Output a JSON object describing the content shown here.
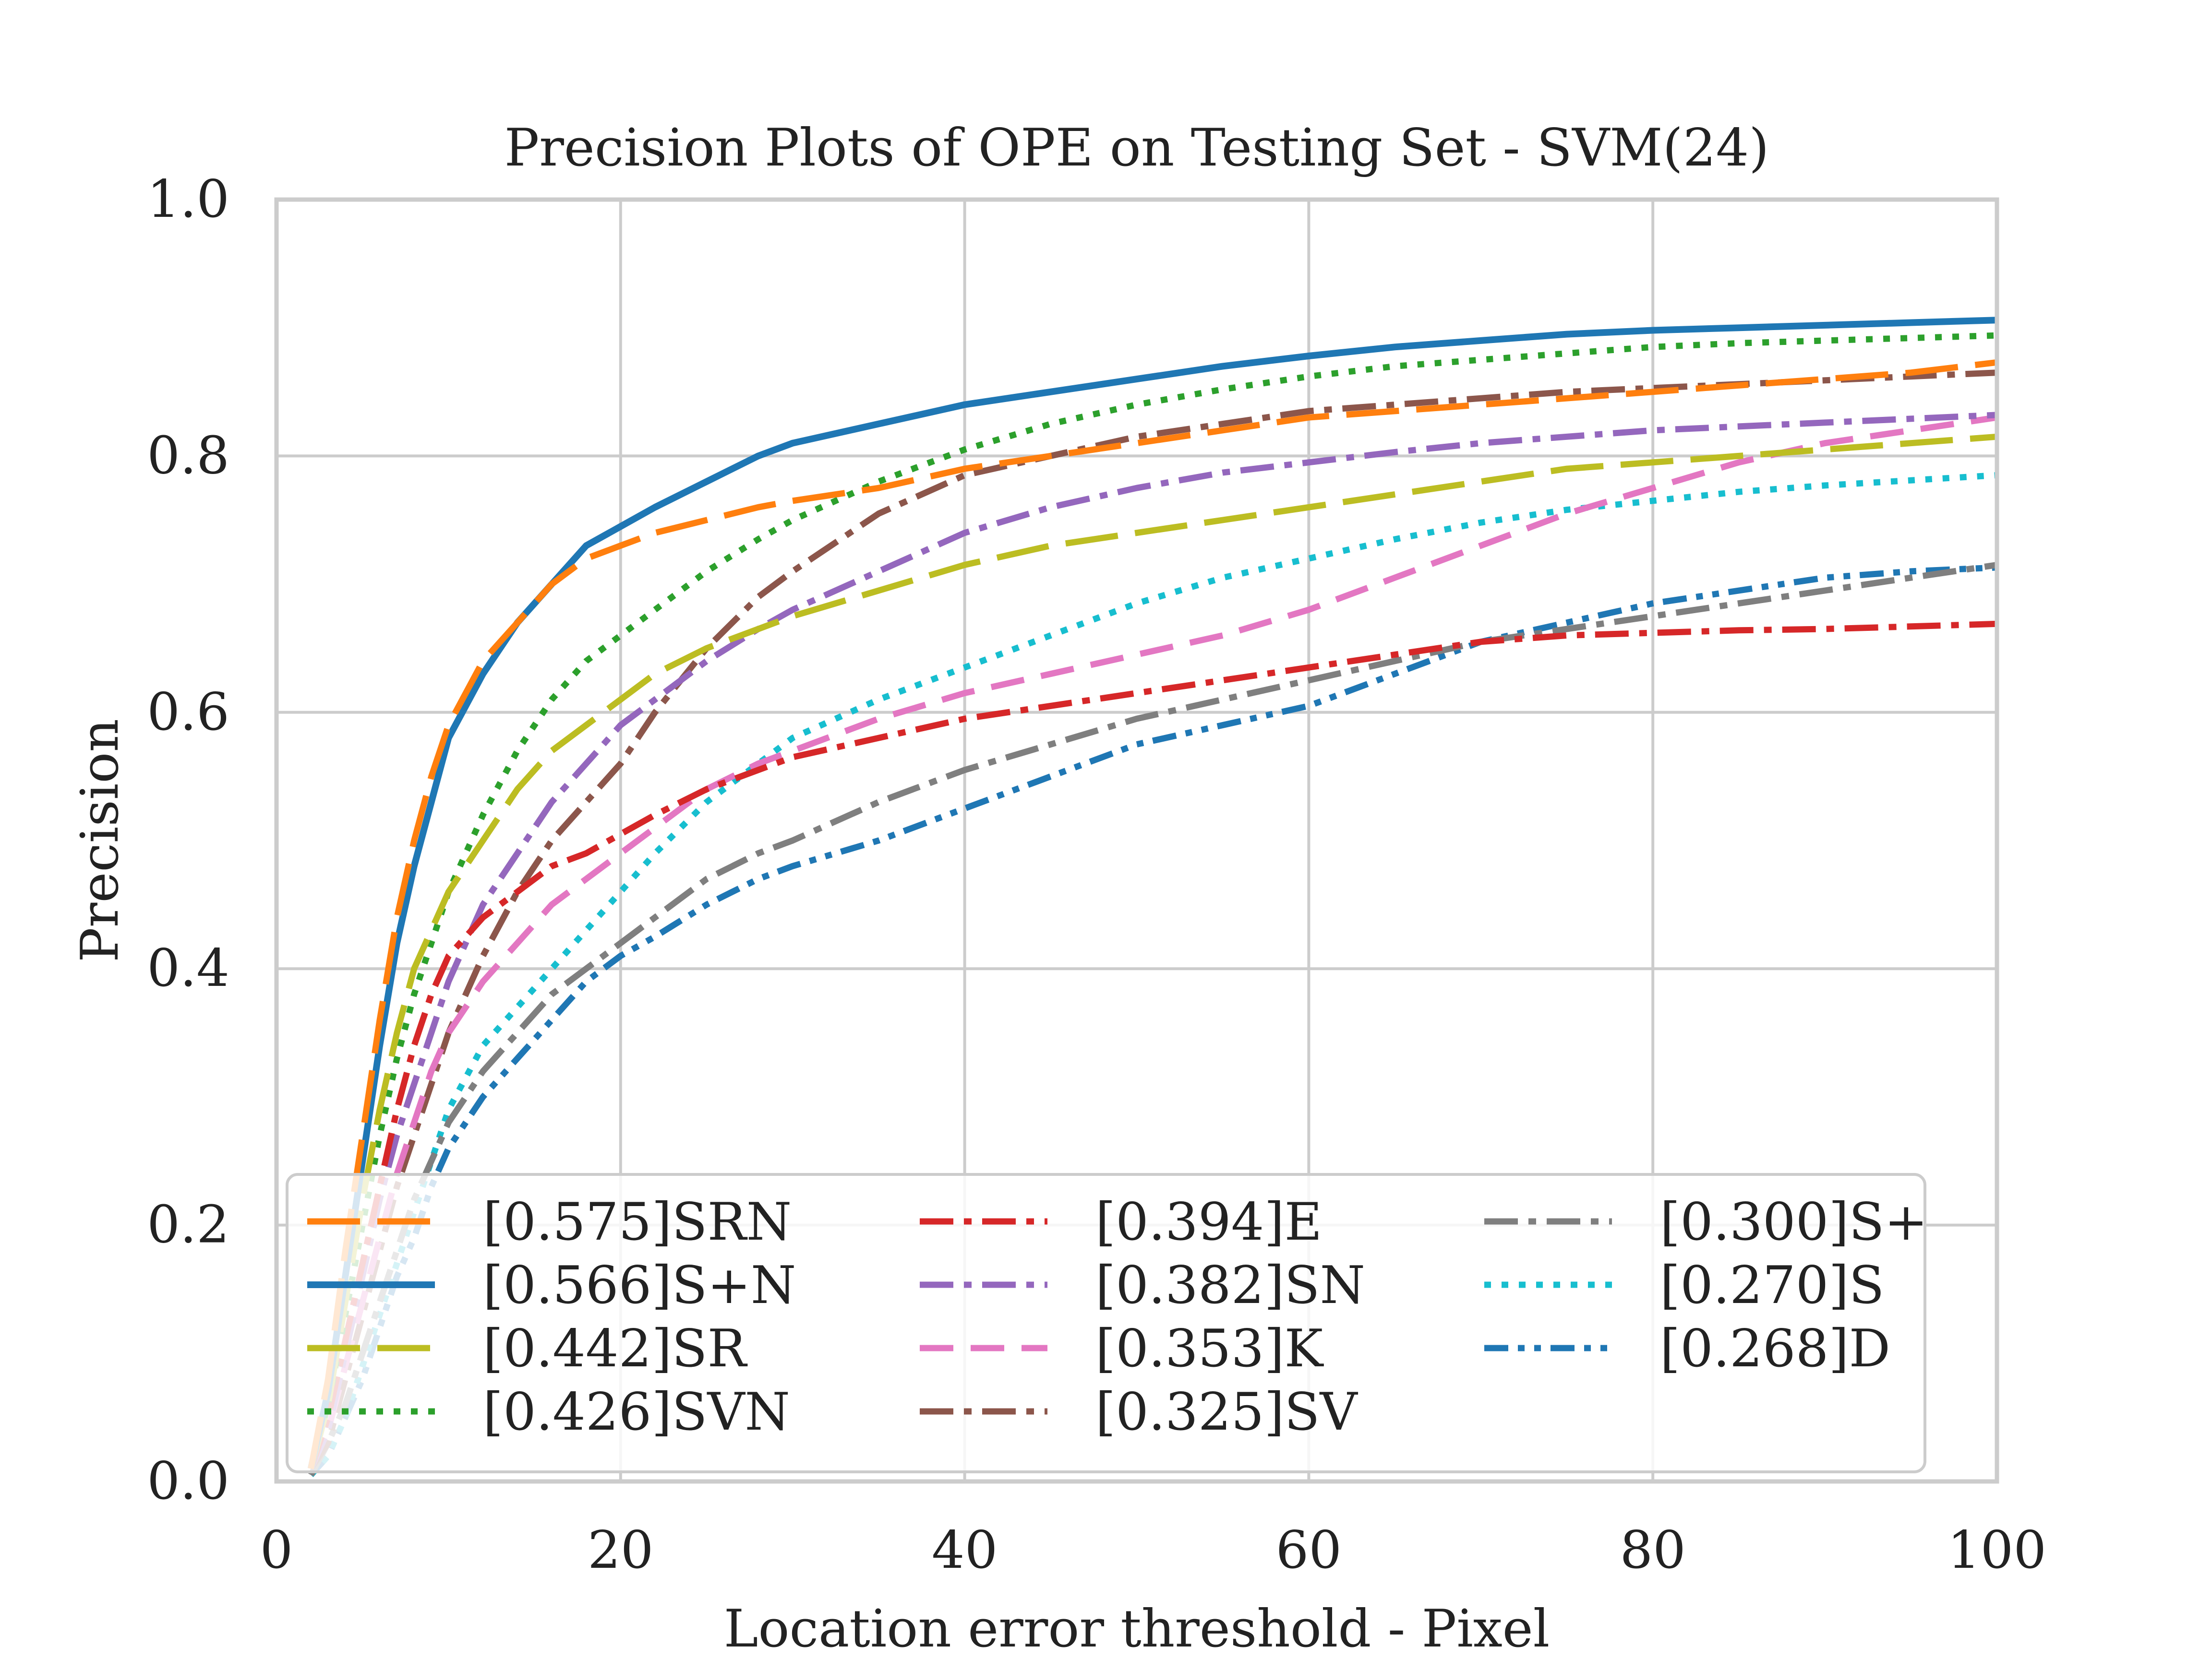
{
  "chart_data": {
    "type": "line",
    "title": "Precision Plots of OPE on Testing Set - SVM(24)",
    "xlabel": "Location error threshold - Pixel",
    "ylabel": "Precision",
    "xlim": [
      0,
      100
    ],
    "ylim": [
      0,
      1.0
    ],
    "xticks": [
      "0",
      "20",
      "40",
      "60",
      "80",
      "100"
    ],
    "yticks": [
      "0.0",
      "0.2",
      "0.4",
      "0.6",
      "0.8",
      "1.0"
    ],
    "grid": true,
    "legend_position": "lower-center",
    "x": [
      2,
      3,
      4,
      5,
      6,
      7,
      8,
      9,
      10,
      12,
      14,
      16,
      18,
      20,
      22,
      25,
      28,
      30,
      35,
      40,
      45,
      50,
      55,
      60,
      65,
      70,
      75,
      80,
      85,
      90,
      95,
      100
    ],
    "series": [
      {
        "name": "[0.575]SRN",
        "color": "#ff7f0e",
        "dash": "long-dash",
        "values": [
          0.01,
          0.08,
          0.18,
          0.27,
          0.36,
          0.44,
          0.5,
          0.55,
          0.59,
          0.64,
          0.67,
          0.7,
          0.72,
          0.73,
          0.74,
          0.75,
          0.76,
          0.765,
          0.775,
          0.79,
          0.8,
          0.81,
          0.82,
          0.83,
          0.835,
          0.84,
          0.845,
          0.85,
          0.855,
          0.86,
          0.865,
          0.873
        ]
      },
      {
        "name": "[0.566]S+N",
        "color": "#1f77b4",
        "dash": "solid",
        "values": [
          0.01,
          0.07,
          0.16,
          0.25,
          0.34,
          0.42,
          0.48,
          0.53,
          0.58,
          0.63,
          0.67,
          0.7,
          0.73,
          0.745,
          0.76,
          0.78,
          0.8,
          0.81,
          0.825,
          0.84,
          0.85,
          0.86,
          0.87,
          0.878,
          0.885,
          0.89,
          0.895,
          0.898,
          0.9,
          0.902,
          0.904,
          0.906
        ]
      },
      {
        "name": "[0.442]SR",
        "color": "#bcbd22",
        "dash": "long-dash",
        "values": [
          0.01,
          0.06,
          0.14,
          0.22,
          0.29,
          0.35,
          0.4,
          0.43,
          0.46,
          0.5,
          0.54,
          0.57,
          0.59,
          0.61,
          0.63,
          0.65,
          0.665,
          0.675,
          0.695,
          0.715,
          0.73,
          0.74,
          0.75,
          0.76,
          0.77,
          0.78,
          0.79,
          0.795,
          0.8,
          0.805,
          0.81,
          0.815
        ]
      },
      {
        "name": "[0.426]SVN",
        "color": "#2ca02c",
        "dash": "dotted",
        "values": [
          0.01,
          0.06,
          0.13,
          0.2,
          0.27,
          0.33,
          0.38,
          0.42,
          0.46,
          0.52,
          0.57,
          0.61,
          0.64,
          0.66,
          0.68,
          0.71,
          0.735,
          0.75,
          0.78,
          0.805,
          0.825,
          0.84,
          0.852,
          0.862,
          0.87,
          0.875,
          0.88,
          0.885,
          0.888,
          0.89,
          0.892,
          0.894
        ]
      },
      {
        "name": "[0.394]E",
        "color": "#d62728",
        "dash": "dash-dot",
        "values": [
          0.01,
          0.05,
          0.11,
          0.17,
          0.23,
          0.29,
          0.34,
          0.38,
          0.41,
          0.44,
          0.46,
          0.48,
          0.49,
          0.505,
          0.52,
          0.54,
          0.555,
          0.565,
          0.58,
          0.595,
          0.605,
          0.615,
          0.625,
          0.635,
          0.645,
          0.655,
          0.66,
          0.662,
          0.664,
          0.665,
          0.667,
          0.669
        ]
      },
      {
        "name": "[0.382]SN",
        "color": "#9467bd",
        "dash": "dash-dot",
        "values": [
          0.01,
          0.04,
          0.1,
          0.16,
          0.22,
          0.27,
          0.31,
          0.35,
          0.39,
          0.45,
          0.49,
          0.53,
          0.56,
          0.59,
          0.61,
          0.64,
          0.665,
          0.68,
          0.71,
          0.74,
          0.76,
          0.775,
          0.787,
          0.795,
          0.803,
          0.81,
          0.815,
          0.82,
          0.823,
          0.826,
          0.829,
          0.832
        ]
      },
      {
        "name": "[0.353]K",
        "color": "#e377c2",
        "dash": "dashed",
        "values": [
          0.01,
          0.04,
          0.09,
          0.14,
          0.19,
          0.24,
          0.28,
          0.32,
          0.35,
          0.39,
          0.42,
          0.45,
          0.47,
          0.49,
          0.51,
          0.54,
          0.56,
          0.57,
          0.595,
          0.615,
          0.63,
          0.645,
          0.66,
          0.68,
          0.705,
          0.73,
          0.755,
          0.775,
          0.795,
          0.81,
          0.82,
          0.83
        ]
      },
      {
        "name": "[0.325]SV",
        "color": "#8c564b",
        "dash": "dash-dot",
        "values": [
          0.01,
          0.03,
          0.08,
          0.13,
          0.18,
          0.23,
          0.27,
          0.31,
          0.35,
          0.41,
          0.46,
          0.5,
          0.53,
          0.56,
          0.6,
          0.65,
          0.69,
          0.71,
          0.755,
          0.785,
          0.8,
          0.815,
          0.825,
          0.835,
          0.84,
          0.845,
          0.85,
          0.853,
          0.856,
          0.859,
          0.862,
          0.865
        ]
      },
      {
        "name": "[0.300]S+",
        "color": "#7f7f7f",
        "dash": "dash-dot",
        "values": [
          0.005,
          0.03,
          0.06,
          0.1,
          0.14,
          0.18,
          0.22,
          0.25,
          0.28,
          0.32,
          0.35,
          0.38,
          0.4,
          0.42,
          0.44,
          0.47,
          0.49,
          0.5,
          0.53,
          0.555,
          0.575,
          0.595,
          0.61,
          0.625,
          0.64,
          0.655,
          0.665,
          0.675,
          0.685,
          0.695,
          0.705,
          0.715
        ]
      },
      {
        "name": "[0.270]S",
        "color": "#17becf",
        "dash": "dotted",
        "values": [
          0.005,
          0.02,
          0.05,
          0.09,
          0.13,
          0.17,
          0.21,
          0.25,
          0.29,
          0.34,
          0.37,
          0.4,
          0.43,
          0.46,
          0.49,
          0.53,
          0.56,
          0.58,
          0.61,
          0.635,
          0.66,
          0.685,
          0.705,
          0.72,
          0.735,
          0.748,
          0.758,
          0.765,
          0.772,
          0.777,
          0.781,
          0.785
        ]
      },
      {
        "name": "[0.268]D",
        "color": "#1f77b4",
        "dash": "dash-dot-dot",
        "values": [
          0.005,
          0.02,
          0.05,
          0.08,
          0.12,
          0.16,
          0.19,
          0.23,
          0.26,
          0.3,
          0.33,
          0.36,
          0.39,
          0.41,
          0.425,
          0.45,
          0.47,
          0.48,
          0.5,
          0.525,
          0.55,
          0.575,
          0.59,
          0.605,
          0.63,
          0.655,
          0.67,
          0.685,
          0.695,
          0.705,
          0.71,
          0.713
        ]
      }
    ]
  }
}
